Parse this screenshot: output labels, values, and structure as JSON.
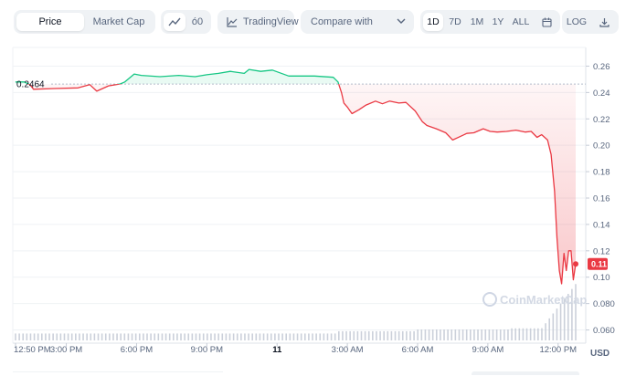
{
  "toolbar": {
    "price_tab": "Price",
    "market_cap_tab": "Market Cap",
    "line_icon": "line-chart-icon",
    "candle_label": "ó0",
    "tradingview_label": "TradingView",
    "compare_label": "Compare with",
    "timeframes": [
      "1D",
      "7D",
      "1M",
      "1Y",
      "ALL"
    ],
    "active_timeframe": "1D",
    "calendar_icon": "calendar-icon",
    "log_label": "LOG",
    "download_icon": "download-icon"
  },
  "colors": {
    "up": "#16c784",
    "down": "#ea3943",
    "grid": "#eff2f5",
    "axis_text": "#58667e",
    "volume": "#c5cbd6"
  },
  "chart_data": {
    "type": "line",
    "reference_price": 0.2464,
    "reference_label": "0.2464",
    "current_price": 0.11,
    "current_label": "0.11",
    "currency": "USD",
    "watermark": "CoinMarketCap",
    "ylim": [
      0.05,
      0.27
    ],
    "y_ticks": [
      "0.26",
      "0.24",
      "0.22",
      "0.20",
      "0.18",
      "0.16",
      "0.14",
      "0.12",
      "0.10",
      "0.080",
      "0.060"
    ],
    "y_tick_values": [
      0.26,
      0.24,
      0.22,
      0.2,
      0.18,
      0.16,
      0.14,
      0.12,
      0.1,
      0.08,
      0.06
    ],
    "x_range_hours": [
      12.833,
      36.75
    ],
    "x_ticks": [
      {
        "label": "12:50 PM",
        "h": 12.833
      },
      {
        "label": "3:00 PM",
        "h": 15
      },
      {
        "label": "6:00 PM",
        "h": 18
      },
      {
        "label": "9:00 PM",
        "h": 21
      },
      {
        "label": "11",
        "h": 24
      },
      {
        "label": "3:00 AM",
        "h": 27
      },
      {
        "label": "6:00 AM",
        "h": 30
      },
      {
        "label": "9:00 AM",
        "h": 33
      },
      {
        "label": "12:00 PM",
        "h": 36
      }
    ],
    "series": [
      {
        "x": [
          12.83,
          13.2,
          13.45,
          13.6,
          14.5,
          15.5,
          16.0,
          16.3,
          16.8,
          17.3,
          17.5,
          17.9,
          18.2,
          19.0,
          19.8,
          20.5,
          21.0,
          21.5,
          22.0,
          22.6,
          22.8,
          23.3,
          23.8,
          24.5,
          25.0,
          25.6,
          26.4,
          26.6,
          26.75,
          26.85,
          27.0,
          27.2,
          27.5,
          27.8,
          28.2,
          28.5,
          28.8,
          29.2,
          29.5,
          29.9,
          30.2,
          30.4,
          30.8,
          31.2,
          31.5,
          31.8,
          32.1,
          32.4,
          32.8,
          33.1,
          33.4,
          33.8,
          34.2,
          34.6,
          34.85,
          35.1,
          35.3,
          35.55,
          35.7,
          35.85,
          35.95,
          36.05,
          36.15,
          36.25,
          36.35,
          36.45,
          36.55,
          36.65,
          36.75
        ],
        "y": [
          0.248,
          0.248,
          0.246,
          0.2425,
          0.243,
          0.2435,
          0.246,
          0.241,
          0.245,
          0.2465,
          0.248,
          0.254,
          0.253,
          0.252,
          0.253,
          0.252,
          0.2535,
          0.2545,
          0.256,
          0.2545,
          0.2575,
          0.256,
          0.257,
          0.2525,
          0.2525,
          0.2525,
          0.2515,
          0.248,
          0.24,
          0.232,
          0.229,
          0.224,
          0.227,
          0.2305,
          0.2335,
          0.2315,
          0.2335,
          0.232,
          0.2325,
          0.226,
          0.218,
          0.215,
          0.2125,
          0.2095,
          0.204,
          0.2065,
          0.209,
          0.2095,
          0.2125,
          0.2105,
          0.21,
          0.2105,
          0.2115,
          0.21,
          0.2105,
          0.206,
          0.208,
          0.204,
          0.193,
          0.165,
          0.13,
          0.105,
          0.095,
          0.118,
          0.105,
          0.12,
          0.12,
          0.098,
          0.11
        ]
      }
    ],
    "volume_level_end": 0.98
  }
}
